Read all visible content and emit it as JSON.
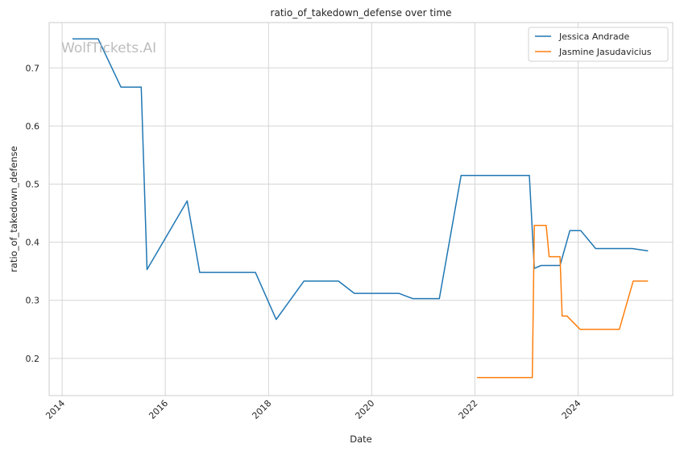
{
  "watermark": "WolfTickets.AI",
  "chart_data": {
    "type": "line",
    "title": "ratio_of_takedown_defense over time",
    "xlabel": "Date",
    "ylabel": "ratio_of_takedown_defense",
    "x_type": "date",
    "xlim": [
      "2013-10-01",
      "2025-11-01"
    ],
    "ylim": [
      0.136,
      0.778
    ],
    "x_ticks": [
      "2014",
      "2016",
      "2018",
      "2020",
      "2022",
      "2024"
    ],
    "y_ticks": [
      0.2,
      0.3,
      0.4,
      0.5,
      0.6,
      0.7
    ],
    "grid": true,
    "legend_position": "top-right",
    "colors": {
      "Jessica Andrade": "#1f77b4",
      "Jasmine Jasudavicius": "#ff7f0e"
    },
    "series": [
      {
        "name": "Jessica Andrade",
        "x": [
          "2014-03-15",
          "2014-09-13",
          "2015-02-21",
          "2015-07-15",
          "2015-08-25",
          "2016-06-04",
          "2016-09-01",
          "2017-09-30",
          "2018-02-24",
          "2018-09-08",
          "2019-05-11",
          "2019-08-31",
          "2020-07-11",
          "2020-10-17",
          "2021-04-24",
          "2021-09-25",
          "2023-01-21",
          "2023-02-25",
          "2023-04-15",
          "2023-08-26",
          "2023-11-04",
          "2024-01-20",
          "2024-05-04",
          "2025-01-18",
          "2025-05-10"
        ],
        "y": [
          0.75,
          0.75,
          0.667,
          0.667,
          0.353,
          0.471,
          0.348,
          0.348,
          0.267,
          0.333,
          0.333,
          0.312,
          0.312,
          0.303,
          0.303,
          0.515,
          0.515,
          0.355,
          0.36,
          0.36,
          0.42,
          0.42,
          0.389,
          0.389,
          0.385
        ]
      },
      {
        "name": "Jasmine Jasudavicius",
        "x": [
          "2022-01-15",
          "2023-02-11",
          "2023-02-25",
          "2023-05-20",
          "2023-06-10",
          "2023-08-26",
          "2023-09-10",
          "2023-10-14",
          "2024-01-15",
          "2024-10-19",
          "2025-01-25",
          "2025-05-10"
        ],
        "y": [
          0.167,
          0.167,
          0.429,
          0.429,
          0.375,
          0.375,
          0.273,
          0.273,
          0.25,
          0.25,
          0.333,
          0.333
        ]
      }
    ]
  }
}
